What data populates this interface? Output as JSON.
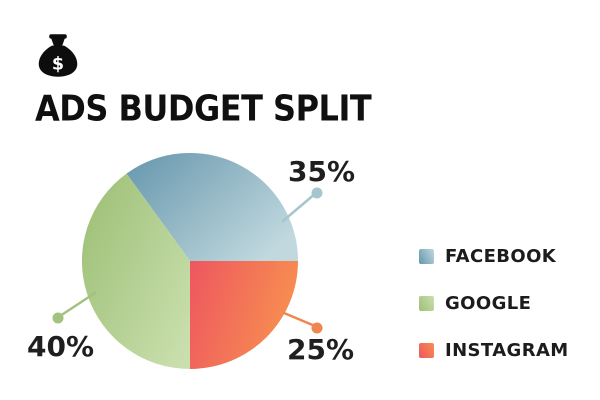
{
  "page": {
    "background": "#ffffff"
  },
  "header": {
    "icon_name": "money-bag-icon",
    "icon_symbol": "$",
    "icon_color": "#0d0d0d"
  },
  "chart_data": {
    "type": "pie",
    "title": "ADS BUDGET SPLIT",
    "unit": "%",
    "start_angle_deg": 0,
    "direction": "counterclockwise",
    "legend_position": "right",
    "categories": [
      "FACEBOOK",
      "GOOGLE",
      "INSTAGRAM"
    ],
    "values": [
      35,
      40,
      25
    ],
    "slice_labels": [
      "35%",
      "40%",
      "25%"
    ],
    "series_styles": [
      {
        "gradient_from": "#6596ac",
        "gradient_to": "#c0d8de",
        "callout_color": "#a5c6cf"
      },
      {
        "gradient_from": "#9dc076",
        "gradient_to": "#cadfae",
        "callout_color": "#a2c37d"
      },
      {
        "gradient_from": "#ee5660",
        "gradient_to": "#f78e50",
        "callout_color": "#f0854f"
      }
    ],
    "label_text_color": "#1f1f1f"
  }
}
